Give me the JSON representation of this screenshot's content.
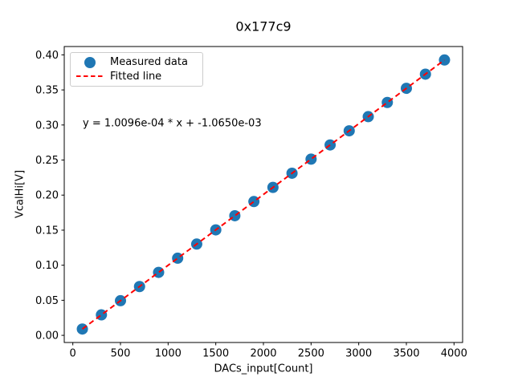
{
  "chart_data": {
    "type": "scatter",
    "title": "0x177c9",
    "xlabel": "DACs_input[Count]",
    "ylabel": "VcalHi[V]",
    "annotation": "y = 1.0096e-04 * x + -1.0650e-03",
    "grid": false,
    "series": [
      {
        "name": "Measured data",
        "type": "scatter",
        "color": "#1f77b4",
        "marker": "circle",
        "x": [
          100,
          300,
          500,
          700,
          900,
          1100,
          1300,
          1500,
          1700,
          1900,
          2100,
          2300,
          2500,
          2700,
          2900,
          3100,
          3300,
          3500,
          3700,
          3900
        ],
        "y": [
          0.009,
          0.0292,
          0.0494,
          0.0696,
          0.0898,
          0.11,
          0.1302,
          0.1504,
          0.1706,
          0.1908,
          0.211,
          0.2312,
          0.2513,
          0.2715,
          0.2917,
          0.3119,
          0.3321,
          0.3523,
          0.3725,
          0.3927
        ]
      },
      {
        "name": "Fitted line",
        "type": "line",
        "style": "dashed",
        "color": "#ff0000",
        "slope": 0.00010096,
        "intercept": -0.001065,
        "x_range": [
          100,
          3900
        ]
      }
    ],
    "legend": {
      "position": "upper left",
      "entries": [
        "Measured data",
        "Fitted line"
      ]
    },
    "axes": {
      "xlim": [
        -90,
        4090
      ],
      "ylim": [
        -0.0102,
        0.4119
      ],
      "xticks": [
        0,
        500,
        1000,
        1500,
        2000,
        2500,
        3000,
        3500,
        4000
      ],
      "xtick_labels": [
        "0",
        "500",
        "1000",
        "1500",
        "2000",
        "2500",
        "3000",
        "3500",
        "4000"
      ],
      "yticks": [
        0.0,
        0.05,
        0.1,
        0.15,
        0.2,
        0.25,
        0.3,
        0.35,
        0.4
      ],
      "ytick_labels": [
        "0.00",
        "0.05",
        "0.10",
        "0.15",
        "0.20",
        "0.25",
        "0.30",
        "0.35",
        "0.40"
      ]
    },
    "colors": {
      "frame": "#000000",
      "text": "#000000",
      "legend_border": "#cccccc"
    }
  }
}
